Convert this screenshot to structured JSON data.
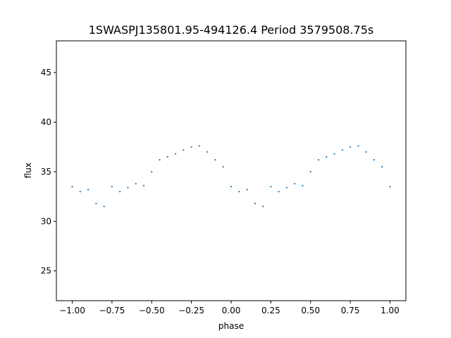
{
  "chart_data": {
    "type": "scatter",
    "title": "1SWASPJ135801.95-494126.4 Period 3579508.75s",
    "xlabel": "phase",
    "ylabel": "flux",
    "xlim": [
      -1.1,
      1.1
    ],
    "ylim": [
      22.0,
      48.2
    ],
    "x_ticks": [
      {
        "value": -1.0,
        "label": "−1.00"
      },
      {
        "value": -0.75,
        "label": "−0.75"
      },
      {
        "value": -0.5,
        "label": "−0.50"
      },
      {
        "value": -0.25,
        "label": "−0.25"
      },
      {
        "value": 0.0,
        "label": "0.00"
      },
      {
        "value": 0.25,
        "label": "0.25"
      },
      {
        "value": 0.5,
        "label": "0.50"
      },
      {
        "value": 0.75,
        "label": "0.75"
      },
      {
        "value": 1.0,
        "label": "1.00"
      }
    ],
    "y_ticks": [
      {
        "value": 25,
        "label": "25"
      },
      {
        "value": 30,
        "label": "30"
      },
      {
        "value": 35,
        "label": "35"
      },
      {
        "value": 40,
        "label": "40"
      },
      {
        "value": 45,
        "label": "45"
      }
    ],
    "grid": false,
    "series_color": "#1f77b4",
    "series": [
      {
        "name": "",
        "x": [
          -1.0,
          -0.95,
          -0.9,
          -0.85,
          -0.8,
          -0.75,
          -0.7,
          -0.65,
          -0.6,
          -0.55,
          -0.5,
          -0.45,
          -0.4,
          -0.35,
          -0.3,
          -0.25,
          -0.2,
          -0.15,
          -0.1,
          -0.05,
          0.0,
          0.05,
          0.1,
          0.15,
          0.2,
          0.25,
          0.3,
          0.35,
          0.4,
          0.45,
          0.5,
          0.55,
          0.6,
          0.65,
          0.7,
          0.75,
          0.8,
          0.85,
          0.9,
          0.95,
          1.0
        ],
        "y": [
          33.5,
          33.0,
          33.2,
          31.8,
          31.5,
          33.5,
          33.0,
          33.4,
          33.8,
          33.6,
          35.0,
          36.2,
          36.5,
          36.8,
          37.2,
          37.5,
          37.6,
          37.0,
          36.2,
          35.5,
          33.5,
          33.0,
          33.2,
          31.8,
          31.5,
          33.5,
          33.0,
          33.4,
          33.8,
          33.6,
          35.0,
          36.2,
          36.5,
          36.8,
          37.2,
          37.5,
          37.6,
          37.0,
          36.2,
          35.5,
          33.5
        ]
      }
    ]
  }
}
